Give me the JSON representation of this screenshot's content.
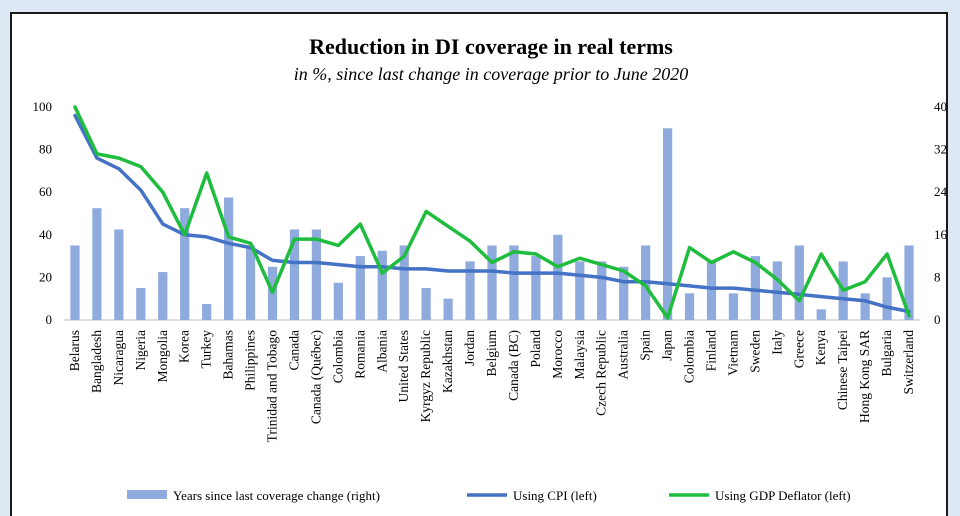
{
  "chart_data": {
    "type": "bar+line",
    "title": "Reduction in DI coverage in real terms",
    "subtitle": "in %, since last change in coverage prior to June 2020",
    "ylim_left": [
      0,
      100
    ],
    "yticks_left": [
      "0",
      "20",
      "40",
      "60",
      "80",
      "100"
    ],
    "ylim_right": [
      0,
      40
    ],
    "yticks_right": [
      "0",
      "8",
      "16",
      "24",
      "32",
      "40"
    ],
    "grid": false,
    "legend_position": "bottom",
    "categories": [
      "Belarus",
      "Bangladesh",
      "Nicaragua",
      "Nigeria",
      "Mongolia",
      "Korea",
      "Turkey",
      "Bahamas",
      "Philippines",
      "Trinidad and Tobago",
      "Canada",
      "Canada (Québec)",
      "Colombia",
      "Romania",
      "Albania",
      "United States",
      "Kyrgyz Republic",
      "Kazakhstan",
      "Jordan",
      "Belgium",
      "Canada (BC)",
      "Poland",
      "Morocco",
      "Malaysia",
      "Czech Republic",
      "Australia",
      "Spain",
      "Japan",
      "Colombia",
      "Finland",
      "Vietnam",
      "Sweden",
      "Italy",
      "Greece",
      "Kenya",
      "Chinese Taipei",
      "Hong Kong SAR",
      "Bulgaria",
      "Switzerland"
    ],
    "series": [
      {
        "name": "Years since last coverage change (right)",
        "kind": "bar",
        "axis": "right",
        "color": "#8faadc",
        "values": [
          14,
          21,
          17,
          6,
          9,
          21,
          3,
          23,
          14,
          10,
          17,
          17,
          7,
          12,
          13,
          14,
          6,
          4,
          11,
          14,
          14,
          12,
          16,
          11,
          11,
          10,
          14,
          36,
          5,
          11,
          5,
          12,
          11,
          14,
          2,
          11,
          5,
          8,
          14
        ]
      },
      {
        "name": "Using CPI (left)",
        "kind": "line",
        "axis": "left",
        "color": "#4472c4",
        "values": [
          96,
          76,
          71,
          61,
          45,
          40,
          39,
          36,
          34,
          28,
          27,
          27,
          26,
          25,
          25,
          24,
          24,
          23,
          23,
          23,
          22,
          22,
          22,
          21,
          20,
          18,
          18,
          17,
          16,
          15,
          15,
          14,
          13,
          12,
          11,
          10,
          9,
          6,
          4
        ]
      },
      {
        "name": "Using GDP Deflator (left)",
        "kind": "line",
        "axis": "left",
        "color": "#1fbd3e",
        "values": [
          100,
          78,
          76,
          72,
          60,
          40,
          69,
          39,
          36,
          13,
          38,
          38,
          35,
          45,
          22,
          30,
          51,
          44,
          37,
          27,
          32,
          31,
          25,
          29,
          26,
          23,
          16,
          1,
          34,
          27,
          32,
          27,
          19,
          9,
          31,
          14,
          18,
          31,
          2
        ]
      }
    ]
  }
}
